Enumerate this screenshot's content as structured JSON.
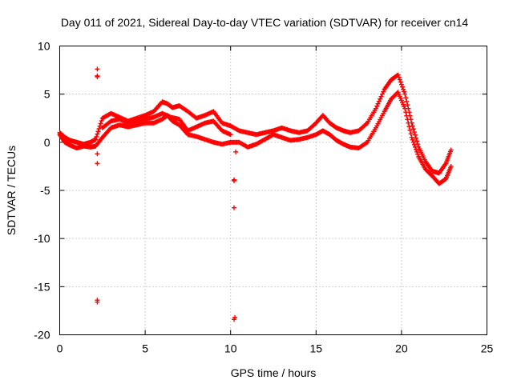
{
  "chart_data": {
    "type": "scatter",
    "title": "Day 011 of 2021, Sidereal Day-to-day VTEC variation (SDTVAR) for receiver cn14",
    "xlabel": "GPS time / hours",
    "ylabel": "SDTVAR / TECUs",
    "xlim": [
      0,
      25
    ],
    "ylim": [
      -20,
      10
    ],
    "xticks": [
      0,
      5,
      10,
      15,
      20,
      25
    ],
    "yticks": [
      -20,
      -15,
      -10,
      -5,
      0,
      5,
      10
    ],
    "xtick_labels": [
      "0",
      "5",
      "10",
      "15",
      "20",
      "25"
    ],
    "ytick_labels": [
      "-20",
      "-15",
      "-10",
      "-5",
      "0",
      "5",
      "10"
    ],
    "grid": true,
    "marker": "+",
    "color": "#ff0000",
    "series": [
      {
        "name": "track-upper",
        "x": [
          0.0,
          0.3,
          0.6,
          1.0,
          1.4,
          1.8,
          2.1,
          2.5,
          3.0,
          3.5,
          4.0,
          4.5,
          5.0,
          5.5,
          6.0,
          6.3,
          6.6,
          7.0,
          7.5,
          8.0,
          8.5,
          9.0,
          9.5,
          10.0,
          10.5,
          11.0,
          11.5,
          12.0,
          12.5,
          13.0,
          13.5,
          14.0,
          14.5,
          15.0,
          15.4,
          15.8,
          16.2,
          16.6,
          17.0,
          17.5,
          18.0,
          18.5,
          19.0,
          19.4,
          19.8,
          20.2,
          20.6,
          21.0,
          21.4,
          21.8,
          22.2,
          22.6,
          22.9
        ],
        "y": [
          1.0,
          0.5,
          0.2,
          0.0,
          -0.2,
          0.0,
          0.3,
          2.5,
          3.0,
          2.6,
          2.2,
          2.5,
          2.8,
          3.2,
          4.2,
          4.0,
          3.6,
          3.8,
          3.2,
          2.5,
          2.8,
          3.2,
          2.0,
          1.7,
          1.2,
          1.0,
          0.8,
          1.0,
          1.2,
          1.5,
          1.2,
          1.0,
          1.2,
          2.0,
          2.8,
          2.0,
          1.5,
          1.2,
          1.0,
          1.2,
          2.0,
          3.5,
          5.5,
          6.5,
          7.0,
          5.0,
          2.0,
          -0.5,
          -2.0,
          -3.0,
          -3.2,
          -2.2,
          -0.8
        ]
      },
      {
        "name": "track-lower",
        "x": [
          0.0,
          0.3,
          0.6,
          1.0,
          1.4,
          1.8,
          2.1,
          2.5,
          3.0,
          3.5,
          4.0,
          4.5,
          5.0,
          5.5,
          6.0,
          6.3,
          6.6,
          7.0,
          7.5,
          8.0,
          8.5,
          9.0,
          9.5,
          10.0,
          10.5,
          11.0,
          11.5,
          12.0,
          12.5,
          13.0,
          13.5,
          14.0,
          14.5,
          15.0,
          15.4,
          15.8,
          16.2,
          16.6,
          17.0,
          17.5,
          18.0,
          18.5,
          19.0,
          19.4,
          19.8,
          20.2,
          20.6,
          21.0,
          21.4,
          21.8,
          22.2,
          22.6,
          22.9
        ],
        "y": [
          0.8,
          0.0,
          -0.3,
          -0.6,
          -0.4,
          -0.5,
          -0.4,
          0.5,
          1.5,
          1.8,
          1.6,
          1.8,
          2.0,
          2.0,
          2.4,
          2.8,
          2.2,
          1.8,
          0.8,
          0.6,
          0.3,
          0.0,
          -0.2,
          0.0,
          0.0,
          -0.5,
          -0.2,
          0.3,
          0.8,
          0.5,
          0.2,
          0.3,
          0.5,
          0.8,
          1.2,
          0.8,
          0.2,
          -0.2,
          -0.5,
          -0.6,
          0.0,
          1.5,
          3.2,
          4.5,
          5.2,
          3.5,
          0.5,
          -1.5,
          -2.8,
          -3.5,
          -4.3,
          -3.8,
          -2.5
        ]
      },
      {
        "name": "track-middle",
        "x": [
          2.5,
          3.0,
          3.5,
          4.0,
          4.5,
          5.0,
          5.5,
          6.0,
          6.5,
          7.0,
          7.5,
          8.0,
          8.5,
          9.0,
          9.5,
          10.0
        ],
        "y": [
          1.5,
          2.2,
          2.4,
          2.0,
          2.2,
          2.4,
          2.6,
          3.0,
          2.6,
          2.4,
          1.2,
          1.6,
          2.0,
          2.2,
          1.2,
          0.8
        ]
      },
      {
        "name": "outliers",
        "x": [
          2.2,
          2.2,
          2.2,
          2.2,
          2.2,
          2.2,
          2.2,
          10.2,
          10.2,
          10.2,
          10.25,
          10.2,
          10.3
        ],
        "y": [
          7.6,
          6.9,
          6.8,
          -1.2,
          -2.2,
          -16.4,
          -16.6,
          -3.9,
          -4.0,
          -6.8,
          -18.2,
          -18.4,
          -1.0
        ]
      }
    ]
  }
}
